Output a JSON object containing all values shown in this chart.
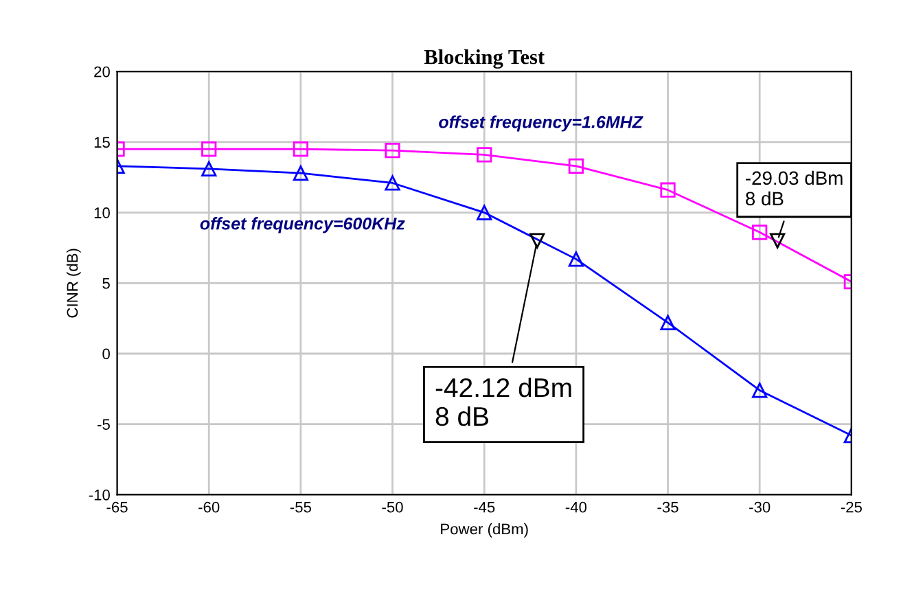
{
  "chart_data": {
    "type": "line",
    "title": "Blocking Test",
    "xlabel": "Power (dBm)",
    "ylabel": "CINR (dB)",
    "x": [
      -65,
      -60,
      -55,
      -50,
      -45,
      -40,
      -35,
      -30,
      -25
    ],
    "series": [
      {
        "name": "offset frequency=1.6MHZ",
        "color": "#ff00ff",
        "marker": "square",
        "values": [
          14.5,
          14.5,
          14.5,
          14.4,
          14.1,
          13.3,
          11.6,
          8.6,
          5.1
        ]
      },
      {
        "name": "offset frequency=600KHz",
        "color": "#0000ff",
        "marker": "triangle",
        "values": [
          13.3,
          13.1,
          12.8,
          12.1,
          10.0,
          6.7,
          2.2,
          -2.6,
          -5.8
        ]
      }
    ],
    "annotations": [
      {
        "text": "-42.12 dBm\n8 dB",
        "x": -42.12,
        "y": 8
      },
      {
        "text": "-29.03 dBm\n8 dB",
        "x": -29.03,
        "y": 8
      }
    ],
    "xlim": [
      -65,
      -25
    ],
    "xticks": [
      -65,
      -60,
      -55,
      -50,
      -45,
      -40,
      -35,
      -30,
      -25
    ],
    "ylim": [
      -10,
      20
    ],
    "yticks": [
      -10,
      -5,
      0,
      5,
      10,
      15,
      20
    ],
    "grid": true,
    "legend": false,
    "line_style": "solid"
  }
}
